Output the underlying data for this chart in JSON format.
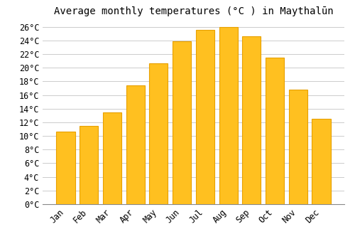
{
  "title": "Average monthly temperatures (°C ) in Maythalūn",
  "months": [
    "Jan",
    "Feb",
    "Mar",
    "Apr",
    "May",
    "Jun",
    "Jul",
    "Aug",
    "Sep",
    "Oct",
    "Nov",
    "Dec"
  ],
  "values": [
    10.6,
    11.5,
    13.5,
    17.4,
    20.6,
    23.9,
    25.5,
    26.0,
    24.6,
    21.5,
    16.8,
    12.5
  ],
  "bar_color": "#FFC020",
  "bar_edge_color": "#E8A000",
  "background_color": "#FFFFFF",
  "grid_color": "#CCCCCC",
  "ylim": [
    0,
    27
  ],
  "ytick_max": 26,
  "ytick_step": 2,
  "title_fontsize": 10,
  "tick_fontsize": 8.5,
  "font_family": "monospace"
}
